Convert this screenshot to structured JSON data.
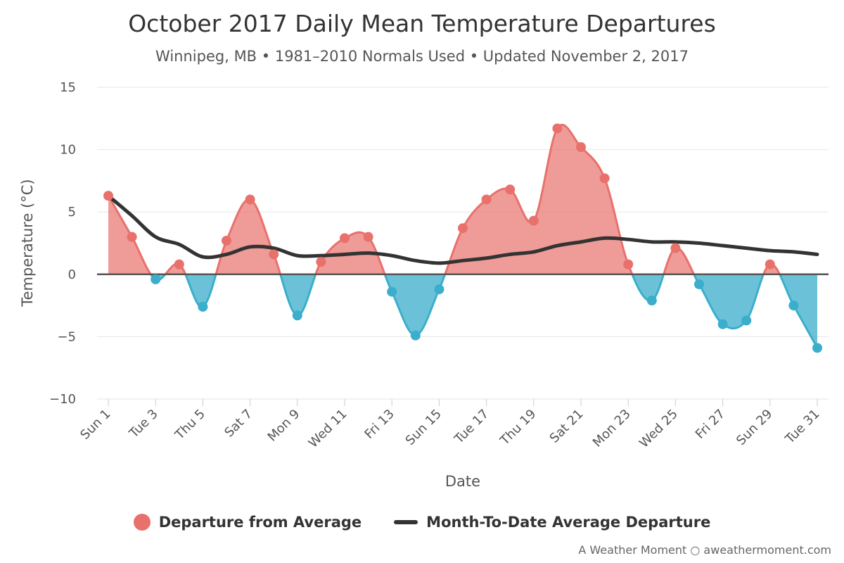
{
  "chart_data": {
    "type": "area",
    "title": "October 2017 Daily Mean Temperature Departures",
    "subtitle": "Winnipeg, MB • 1981–2010 Normals Used • Updated November 2, 2017",
    "xlabel": "Date",
    "ylabel": "Temperature (°C)",
    "ylim": [
      -10,
      15
    ],
    "yticks": [
      15,
      10,
      5,
      0,
      -5,
      -10
    ],
    "ytick_labels": [
      "15",
      "10",
      "5",
      "0",
      "−5",
      "−10"
    ],
    "grid": true,
    "legend_position": "bottom",
    "x": [
      "Sun 1",
      "Mon 2",
      "Tue 3",
      "Wed 4",
      "Thu 5",
      "Fri 6",
      "Sat 7",
      "Sun 8",
      "Mon 9",
      "Tue 10",
      "Wed 11",
      "Thu 12",
      "Fri 13",
      "Sat 14",
      "Sun 15",
      "Mon 16",
      "Tue 17",
      "Wed 18",
      "Thu 19",
      "Fri 20",
      "Sat 21",
      "Sun 22",
      "Mon 23",
      "Tue 24",
      "Wed 25",
      "Thu 26",
      "Fri 27",
      "Sat 28",
      "Sun 29",
      "Mon 30",
      "Tue 31"
    ],
    "x_tick_labels": [
      "Sun 1",
      "Tue 3",
      "Thu 5",
      "Sat 7",
      "Mon 9",
      "Wed 11",
      "Fri 13",
      "Sun 15",
      "Tue 17",
      "Thu 19",
      "Sat 21",
      "Mon 23",
      "Wed 25",
      "Fri 27",
      "Sun 29",
      "Tue 31"
    ],
    "series": [
      {
        "name": "Departure from Average",
        "type": "area",
        "positive_color": "#e8716c",
        "negative_color": "#3aaecb",
        "values": [
          6.3,
          3.0,
          -0.4,
          0.8,
          -2.6,
          2.7,
          6.0,
          1.6,
          -3.3,
          1.0,
          2.9,
          3.0,
          -1.4,
          -4.9,
          -1.2,
          3.7,
          6.0,
          6.8,
          4.3,
          11.7,
          10.2,
          7.7,
          0.8,
          -2.1,
          2.1,
          -0.8,
          -4.0,
          -3.7,
          0.8,
          -2.5,
          -5.9
        ]
      },
      {
        "name": "Month-To-Date Average Departure",
        "type": "line",
        "color": "#333333",
        "values": [
          6.3,
          4.7,
          3.0,
          2.4,
          1.4,
          1.6,
          2.2,
          2.1,
          1.5,
          1.5,
          1.6,
          1.7,
          1.5,
          1.1,
          0.9,
          1.1,
          1.3,
          1.6,
          1.8,
          2.3,
          2.6,
          2.9,
          2.8,
          2.6,
          2.6,
          2.5,
          2.3,
          2.1,
          1.9,
          1.8,
          1.6
        ]
      }
    ]
  },
  "credit": "A Weather Moment ○ aweathermoment.com"
}
